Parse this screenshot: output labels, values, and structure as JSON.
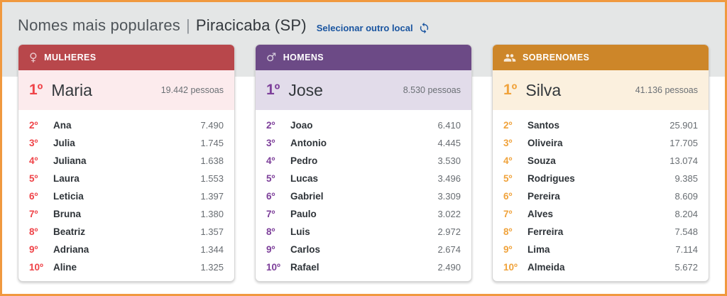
{
  "header": {
    "title": "Nomes mais populares",
    "separator": "|",
    "location": "Piracicaba (SP)",
    "change_location_label": "Selecionar outro local",
    "change_location_icon": "sync-icon"
  },
  "colors": {
    "frame_border": "#f0993f",
    "top_band_bg": "#e4e6e6",
    "link_blue": "#1a55a0",
    "women_header": "#b8474b",
    "women_feature_bg": "#fcebed",
    "women_rank": "#ef4348",
    "men_header": "#6c4a86",
    "men_feature_bg": "#e2dcea",
    "men_rank": "#7d3f9a",
    "surnames_header": "#cd8629",
    "surnames_feature_bg": "#fbf0de",
    "surnames_rank": "#f0a33c"
  },
  "cards": [
    {
      "id": "mulheres",
      "title": "MULHERES",
      "icon": "female-icon",
      "icon_glyph": "♀",
      "top": {
        "rank": "1º",
        "name": "Maria",
        "count": "19.442 pessoas"
      },
      "rows": [
        {
          "rank": "2º",
          "name": "Ana",
          "value": "7.490"
        },
        {
          "rank": "3º",
          "name": "Julia",
          "value": "1.745"
        },
        {
          "rank": "4º",
          "name": "Juliana",
          "value": "1.638"
        },
        {
          "rank": "5º",
          "name": "Laura",
          "value": "1.553"
        },
        {
          "rank": "6º",
          "name": "Leticia",
          "value": "1.397"
        },
        {
          "rank": "7º",
          "name": "Bruna",
          "value": "1.380"
        },
        {
          "rank": "8º",
          "name": "Beatriz",
          "value": "1.357"
        },
        {
          "rank": "9º",
          "name": "Adriana",
          "value": "1.344"
        },
        {
          "rank": "10º",
          "name": "Aline",
          "value": "1.325"
        }
      ]
    },
    {
      "id": "homens",
      "title": "HOMENS",
      "icon": "male-icon",
      "icon_glyph": "♂",
      "top": {
        "rank": "1º",
        "name": "Jose",
        "count": "8.530 pessoas"
      },
      "rows": [
        {
          "rank": "2º",
          "name": "Joao",
          "value": "6.410"
        },
        {
          "rank": "3º",
          "name": "Antonio",
          "value": "4.445"
        },
        {
          "rank": "4º",
          "name": "Pedro",
          "value": "3.530"
        },
        {
          "rank": "5º",
          "name": "Lucas",
          "value": "3.496"
        },
        {
          "rank": "6º",
          "name": "Gabriel",
          "value": "3.309"
        },
        {
          "rank": "7º",
          "name": "Paulo",
          "value": "3.022"
        },
        {
          "rank": "8º",
          "name": "Luis",
          "value": "2.972"
        },
        {
          "rank": "9º",
          "name": "Carlos",
          "value": "2.674"
        },
        {
          "rank": "10º",
          "name": "Rafael",
          "value": "2.490"
        }
      ]
    },
    {
      "id": "sobrenomes",
      "title": "SOBRENOMES",
      "icon": "people-icon",
      "icon_glyph": "",
      "top": {
        "rank": "1º",
        "name": "Silva",
        "count": "41.136 pessoas"
      },
      "rows": [
        {
          "rank": "2º",
          "name": "Santos",
          "value": "25.901"
        },
        {
          "rank": "3º",
          "name": "Oliveira",
          "value": "17.705"
        },
        {
          "rank": "4º",
          "name": "Souza",
          "value": "13.074"
        },
        {
          "rank": "5º",
          "name": "Rodrigues",
          "value": "9.385"
        },
        {
          "rank": "6º",
          "name": "Pereira",
          "value": "8.609"
        },
        {
          "rank": "7º",
          "name": "Alves",
          "value": "8.204"
        },
        {
          "rank": "8º",
          "name": "Ferreira",
          "value": "7.548"
        },
        {
          "rank": "9º",
          "name": "Lima",
          "value": "7.114"
        },
        {
          "rank": "10º",
          "name": "Almeida",
          "value": "5.672"
        }
      ]
    }
  ]
}
